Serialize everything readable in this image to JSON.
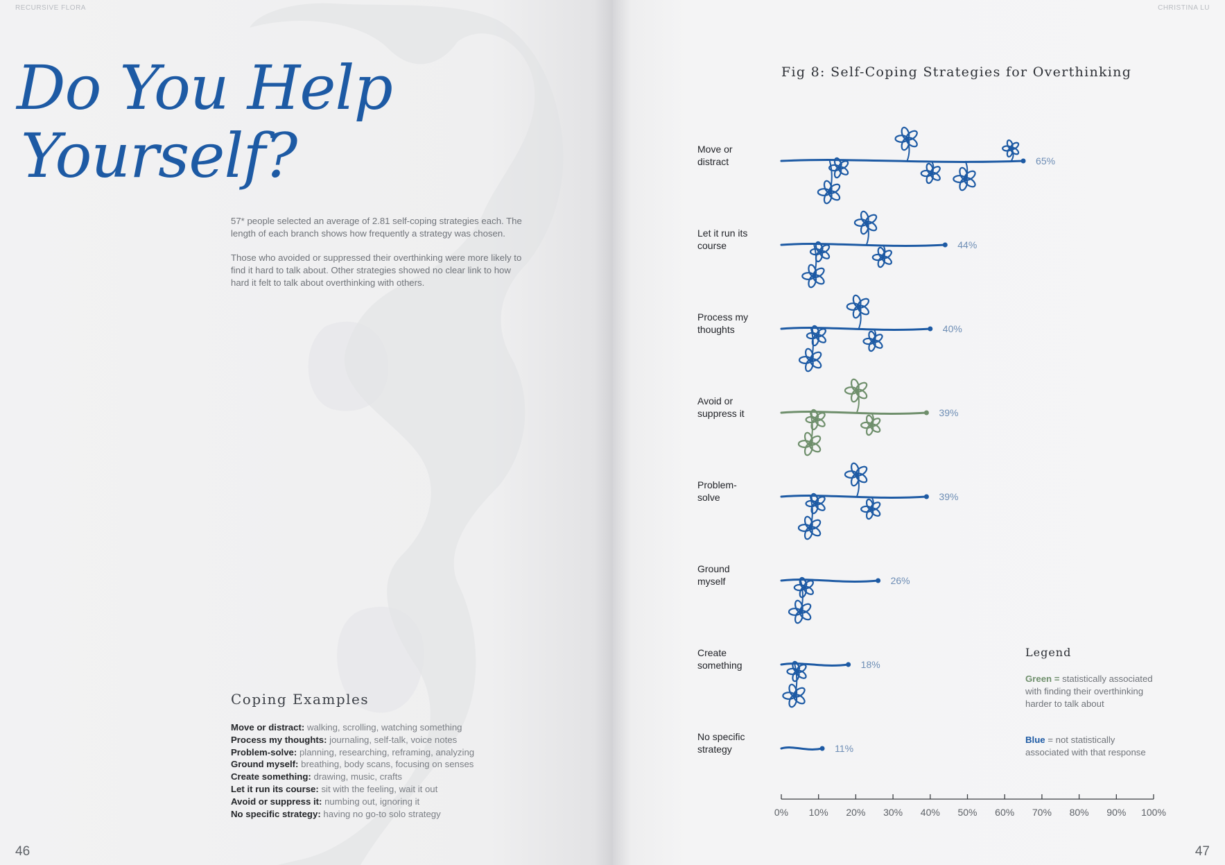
{
  "left_page": {
    "running_head": "RECURSIVE FLORA",
    "page_number": "46",
    "title_line1": "Do You Help",
    "title_line2": "Yourself?",
    "intro_p1": "57* people selected an average of 2.81 self-coping strategies each. The length of each branch shows how frequently a strategy was chosen.",
    "intro_p2": "Those who avoided or suppressed their overthinking were more likely to find it hard to talk about. Other strategies showed no clear link to how hard it felt to talk about overthinking with others.",
    "coping_heading": "Coping Examples",
    "coping_examples": [
      {
        "term": "Move or distract:",
        "text": "walking, scrolling, watching something"
      },
      {
        "term": "Process my thoughts:",
        "text": "journaling, self-talk, voice notes"
      },
      {
        "term": "Problem-solve:",
        "text": "planning, researching, reframing, analyzing"
      },
      {
        "term": "Ground myself:",
        "text": "breathing, body scans, focusing on senses"
      },
      {
        "term": "Create something:",
        "text": "drawing, music, crafts"
      },
      {
        "term": "Let it run its course:",
        "text": "sit with the feeling, wait it out"
      },
      {
        "term": "Avoid or suppress it:",
        "text": "numbing out, ignoring it"
      },
      {
        "term": "No specific strategy:",
        "text": "having no go-to solo strategy"
      }
    ]
  },
  "right_page": {
    "running_head": "CHRISTINA LU",
    "page_number": "47",
    "legend": {
      "heading": "Legend",
      "green_term": "Green =",
      "green_text": "statistically associated with finding their overthinking harder to talk about",
      "blue_term": "Blue",
      "blue_text": "= not statistically associated with that response"
    }
  },
  "colors": {
    "blue": "#1d5aa4",
    "green": "#6f8f6c",
    "pct_text": "#6d8db5",
    "ink": "#1f2126"
  },
  "chart_data": {
    "type": "bar",
    "style": "floral branches (branch length = share of respondents)",
    "title": "Fig 8: Self-Coping Strategies for Overthinking",
    "xlabel": "",
    "ylabel": "",
    "xlim": [
      0,
      100
    ],
    "x_ticks": [
      0,
      10,
      20,
      30,
      40,
      50,
      60,
      70,
      80,
      90,
      100
    ],
    "x_tick_labels": [
      "0%",
      "10%",
      "20%",
      "30%",
      "40%",
      "50%",
      "60%",
      "70%",
      "80%",
      "90%",
      "100%"
    ],
    "categories": [
      [
        "Move or",
        "distract"
      ],
      [
        "Let it run its",
        "course"
      ],
      [
        "Process my",
        "thoughts"
      ],
      [
        "Avoid or",
        "suppress it"
      ],
      [
        "Problem-",
        "solve"
      ],
      [
        "Ground",
        "myself"
      ],
      [
        "Create",
        "something"
      ],
      [
        "No specific",
        "strategy"
      ]
    ],
    "values": [
      65,
      44,
      40,
      39,
      39,
      26,
      18,
      11
    ],
    "value_labels": [
      "65%",
      "44%",
      "40%",
      "39%",
      "39%",
      "26%",
      "18%",
      "11%"
    ],
    "groups": [
      "blue",
      "blue",
      "blue",
      "green",
      "blue",
      "blue",
      "blue",
      "blue"
    ]
  }
}
